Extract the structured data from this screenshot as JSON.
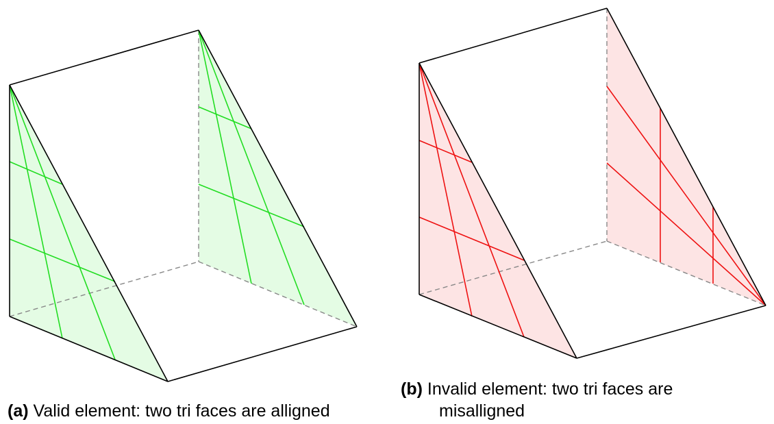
{
  "colors": {
    "valid_fill": "#e4fce4",
    "valid_line": "#22dd22",
    "invalid_fill": "#fde4e4",
    "invalid_line": "#ee1111",
    "edge": "#000000",
    "hidden_edge": "#888888"
  },
  "panels": [
    {
      "id": "a",
      "tag": "(a)",
      "text": "Valid element: two tri faces are alligned",
      "status": "valid",
      "tri_faces_alignment": "aligned"
    },
    {
      "id": "b",
      "tag": "(b)",
      "text_line1": "Invalid element: two tri faces are",
      "text_line2": "misalligned",
      "status": "invalid",
      "tri_faces_alignment": "misaligned"
    }
  ]
}
